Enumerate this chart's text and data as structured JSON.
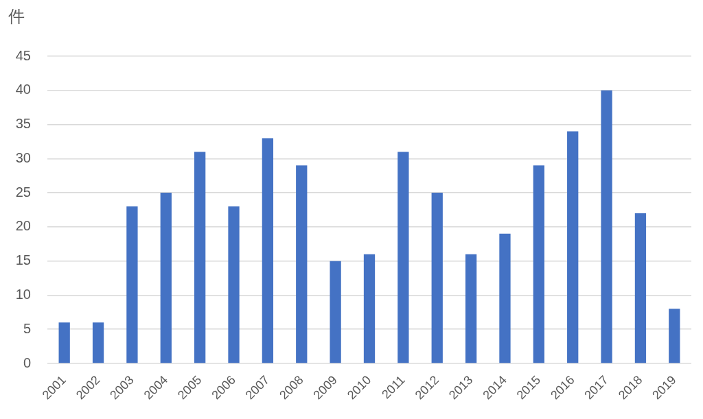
{
  "chart_data": {
    "type": "bar",
    "ylabel": "件",
    "categories": [
      "2001",
      "2002",
      "2003",
      "2004",
      "2005",
      "2006",
      "2007",
      "2008",
      "2009",
      "2010",
      "2011",
      "2012",
      "2013",
      "2014",
      "2015",
      "2016",
      "2017",
      "2018",
      "2019"
    ],
    "values": [
      6,
      6,
      23,
      25,
      31,
      23,
      33,
      29,
      15,
      16,
      31,
      25,
      16,
      19,
      29,
      34,
      40,
      22,
      8
    ],
    "color": "#4472c4",
    "ylim": [
      0,
      45
    ],
    "yticks": [
      0,
      5,
      10,
      15,
      20,
      25,
      30,
      35,
      40,
      45
    ],
    "grid": "y"
  }
}
